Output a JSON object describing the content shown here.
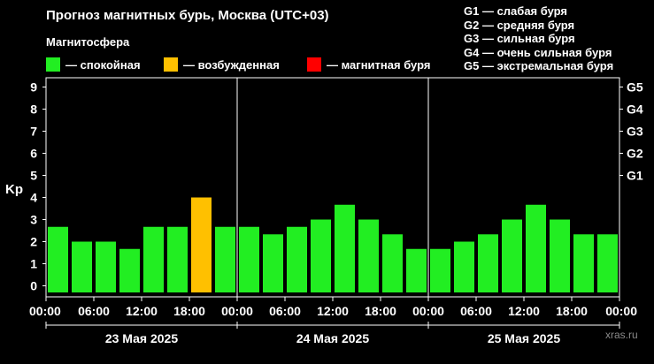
{
  "title": "Прогноз магнитных бурь, Москва (UTC+03)",
  "subtitle": "Магнитосфера",
  "legend": [
    {
      "label": "— спокойная",
      "color": "#22ee22"
    },
    {
      "label": "— возбужденная",
      "color": "#ffc000"
    },
    {
      "label": "— магнитная буря",
      "color": "#ff0000"
    }
  ],
  "storm_scale": [
    "G1 — слабая буря",
    "G2 — средняя буря",
    "G3 — сильная буря",
    "G4 — очень сильная буря",
    "G5 — экстремальная буря"
  ],
  "watermark": "xras.ru",
  "chart_data": {
    "type": "bar",
    "ylabel": "Kp",
    "ylim": [
      0,
      9
    ],
    "yticks": [
      "0",
      "1",
      "2",
      "3",
      "4",
      "5",
      "6",
      "7",
      "8",
      "9"
    ],
    "right_axis": [
      {
        "label": "G1",
        "at": 5
      },
      {
        "label": "G2",
        "at": 6
      },
      {
        "label": "G3",
        "at": 7
      },
      {
        "label": "G4",
        "at": 8
      },
      {
        "label": "G5",
        "at": 9
      }
    ],
    "xticks": [
      "00:00",
      "06:00",
      "12:00",
      "18:00",
      "00:00",
      "06:00",
      "12:00",
      "18:00",
      "00:00",
      "06:00",
      "12:00",
      "18:00",
      "00:00"
    ],
    "days": [
      "23 Мая 2025",
      "24 Мая 2025",
      "25 Мая 2025"
    ],
    "grid": false,
    "legend_position": "top",
    "colors": {
      "quiet": "#22ee22",
      "active": "#ffc000",
      "storm": "#ff0000"
    },
    "series": [
      {
        "values": [
          2.67,
          2.0,
          2.0,
          1.67,
          2.67,
          2.67,
          4.0,
          2.67,
          2.67,
          2.33,
          2.67,
          3.0,
          3.67,
          3.0,
          2.33,
          1.67,
          1.67,
          2.0,
          2.33,
          3.0,
          3.67,
          3.0,
          2.33,
          2.33
        ],
        "levels": [
          "quiet",
          "quiet",
          "quiet",
          "quiet",
          "quiet",
          "quiet",
          "active",
          "quiet",
          "quiet",
          "quiet",
          "quiet",
          "quiet",
          "quiet",
          "quiet",
          "quiet",
          "quiet",
          "quiet",
          "quiet",
          "quiet",
          "quiet",
          "quiet",
          "quiet",
          "quiet",
          "quiet"
        ]
      }
    ]
  }
}
